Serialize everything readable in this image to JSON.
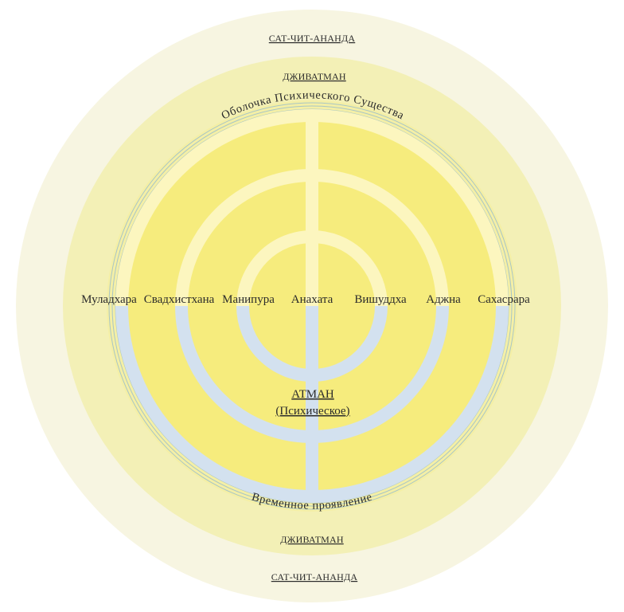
{
  "labels": {
    "outer_top": "САТ-ЧИТ-АНАНДА",
    "outer_bottom": "САТ-ЧИТ-АНАНДА",
    "jivatman_top": "ДЖИВАТМАН",
    "jivatman_bottom": "ДЖИВАТМАН",
    "arc_top": "Оболочка Психического Существа",
    "arc_bottom": "Временное проявление",
    "atman": "АТМАН",
    "atman_sub": "(Психическое)"
  },
  "chakras": [
    "Муладхара",
    "Свадхистхана",
    "Манипура",
    "Анахата",
    "Вишуддха",
    "Аджна",
    "Сахасрара"
  ],
  "colors": {
    "outer_ring": "#f7f5e1",
    "jivatman_ring": "#f3f0b6",
    "band_ring": "#f4efa6",
    "thin_lines": "#a9c6c4",
    "upper_stroke": "#fcf6bf",
    "lower_stroke": "#d3e1ef",
    "inner_fill": "#f6ec7d",
    "text": "#2b2b2b"
  }
}
